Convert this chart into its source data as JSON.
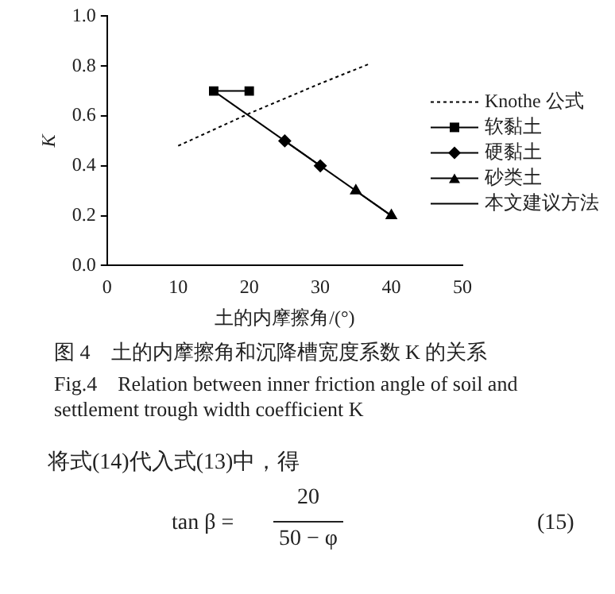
{
  "chart_data": {
    "type": "line",
    "xlabel": "土的内摩擦角/(°)",
    "ylabel": "K",
    "xlim": [
      0,
      50
    ],
    "xticks": [
      0,
      10,
      20,
      30,
      40,
      50
    ],
    "ylim": [
      0,
      1
    ],
    "yticks": [
      {
        "value": 0,
        "label": "0.0"
      },
      {
        "value": 0.2,
        "label": "0.2"
      },
      {
        "value": 0.4,
        "label": "0.4"
      },
      {
        "value": 0.6,
        "label": "0.6"
      },
      {
        "value": 0.8,
        "label": "0.8"
      },
      {
        "value": 1,
        "label": "1.0"
      }
    ],
    "grid": false,
    "legend": "right",
    "series": [
      {
        "name": "Knothe 公式",
        "color": "#000000",
        "x": [
          10,
          20,
          30,
          37
        ],
        "values": [
          0.48,
          0.61,
          0.73,
          0.81
        ],
        "marker": "none",
        "line_style": "dotted"
      },
      {
        "name": "软黏土",
        "color": "#000000",
        "x": [
          15,
          20
        ],
        "values": [
          0.7,
          0.7
        ],
        "marker": "square",
        "line_style": "solid"
      },
      {
        "name": "硬黏土",
        "color": "#000000",
        "x": [
          25,
          30
        ],
        "values": [
          0.5,
          0.4
        ],
        "marker": "diamond",
        "line_style": "solid"
      },
      {
        "name": "砂类土",
        "color": "#000000",
        "x": [
          35,
          40
        ],
        "values": [
          0.3,
          0.2
        ],
        "marker": "triangle",
        "line_style": "solid"
      },
      {
        "name": "本文建议方法",
        "color": "#000000",
        "x": [
          15,
          40
        ],
        "values": [
          0.7,
          0.2
        ],
        "marker": "none",
        "line_style": "solid"
      }
    ],
    "annotations": [
      "图 4　土的内摩擦角和沉降槽宽度系数 K 的关系",
      "Fig.4　Relation between inner friction angle of soil and settlement trough width coefficient K",
      "将式(14)代入式(13)中，得",
      "tan β =",
      "20",
      "50 − φ",
      "(15)"
    ]
  }
}
